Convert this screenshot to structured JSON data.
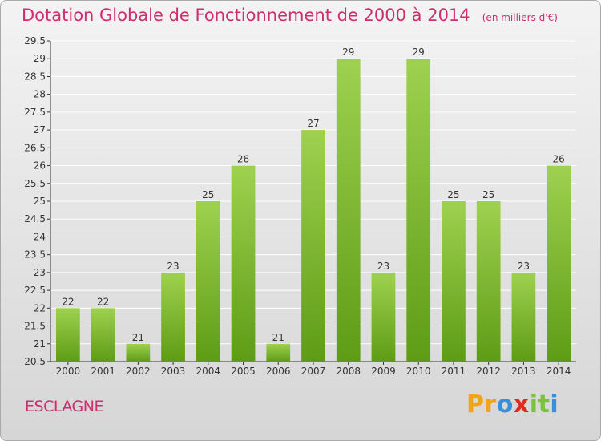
{
  "colors": {
    "title": "#cc2f6f",
    "bar_light": "#9ed14f",
    "bar_dark": "#5e9c16",
    "grid": "#ffffff",
    "axis": "#333333",
    "logo": [
      "#f2a31c",
      "#3a8fd6",
      "#f2a31c",
      "#e02a1f",
      "#7cc242",
      "#3a8fd6"
    ]
  },
  "logo": {
    "text": "Proxiti",
    "letters": [
      "P",
      "r",
      "o",
      "x",
      "i",
      "t",
      "i"
    ]
  },
  "commune": "ESCLAGNE",
  "chart_data": {
    "type": "bar",
    "title": "Dotation Globale de Fonctionnement de 2000 à 2014",
    "subtitle": "(en milliers d'€)",
    "xlabel": "",
    "ylabel": "",
    "categories": [
      "2000",
      "2001",
      "2002",
      "2003",
      "2004",
      "2005",
      "2006",
      "2007",
      "2008",
      "2009",
      "2010",
      "2011",
      "2012",
      "2013",
      "2014"
    ],
    "values": [
      22,
      22,
      21,
      23,
      25,
      26,
      21,
      27,
      29,
      23,
      29,
      25,
      25,
      23,
      26
    ],
    "ylim": [
      20.5,
      29.5
    ],
    "ytick_labels": [
      "20.5",
      "21",
      "21.5",
      "22",
      "22.5",
      "23",
      "23.5",
      "24",
      "24.5",
      "25",
      "25.5",
      "26",
      "26.5",
      "27",
      "27.5",
      "28",
      "28.5",
      "29",
      "29.5"
    ],
    "grid": true,
    "legend": "none"
  }
}
